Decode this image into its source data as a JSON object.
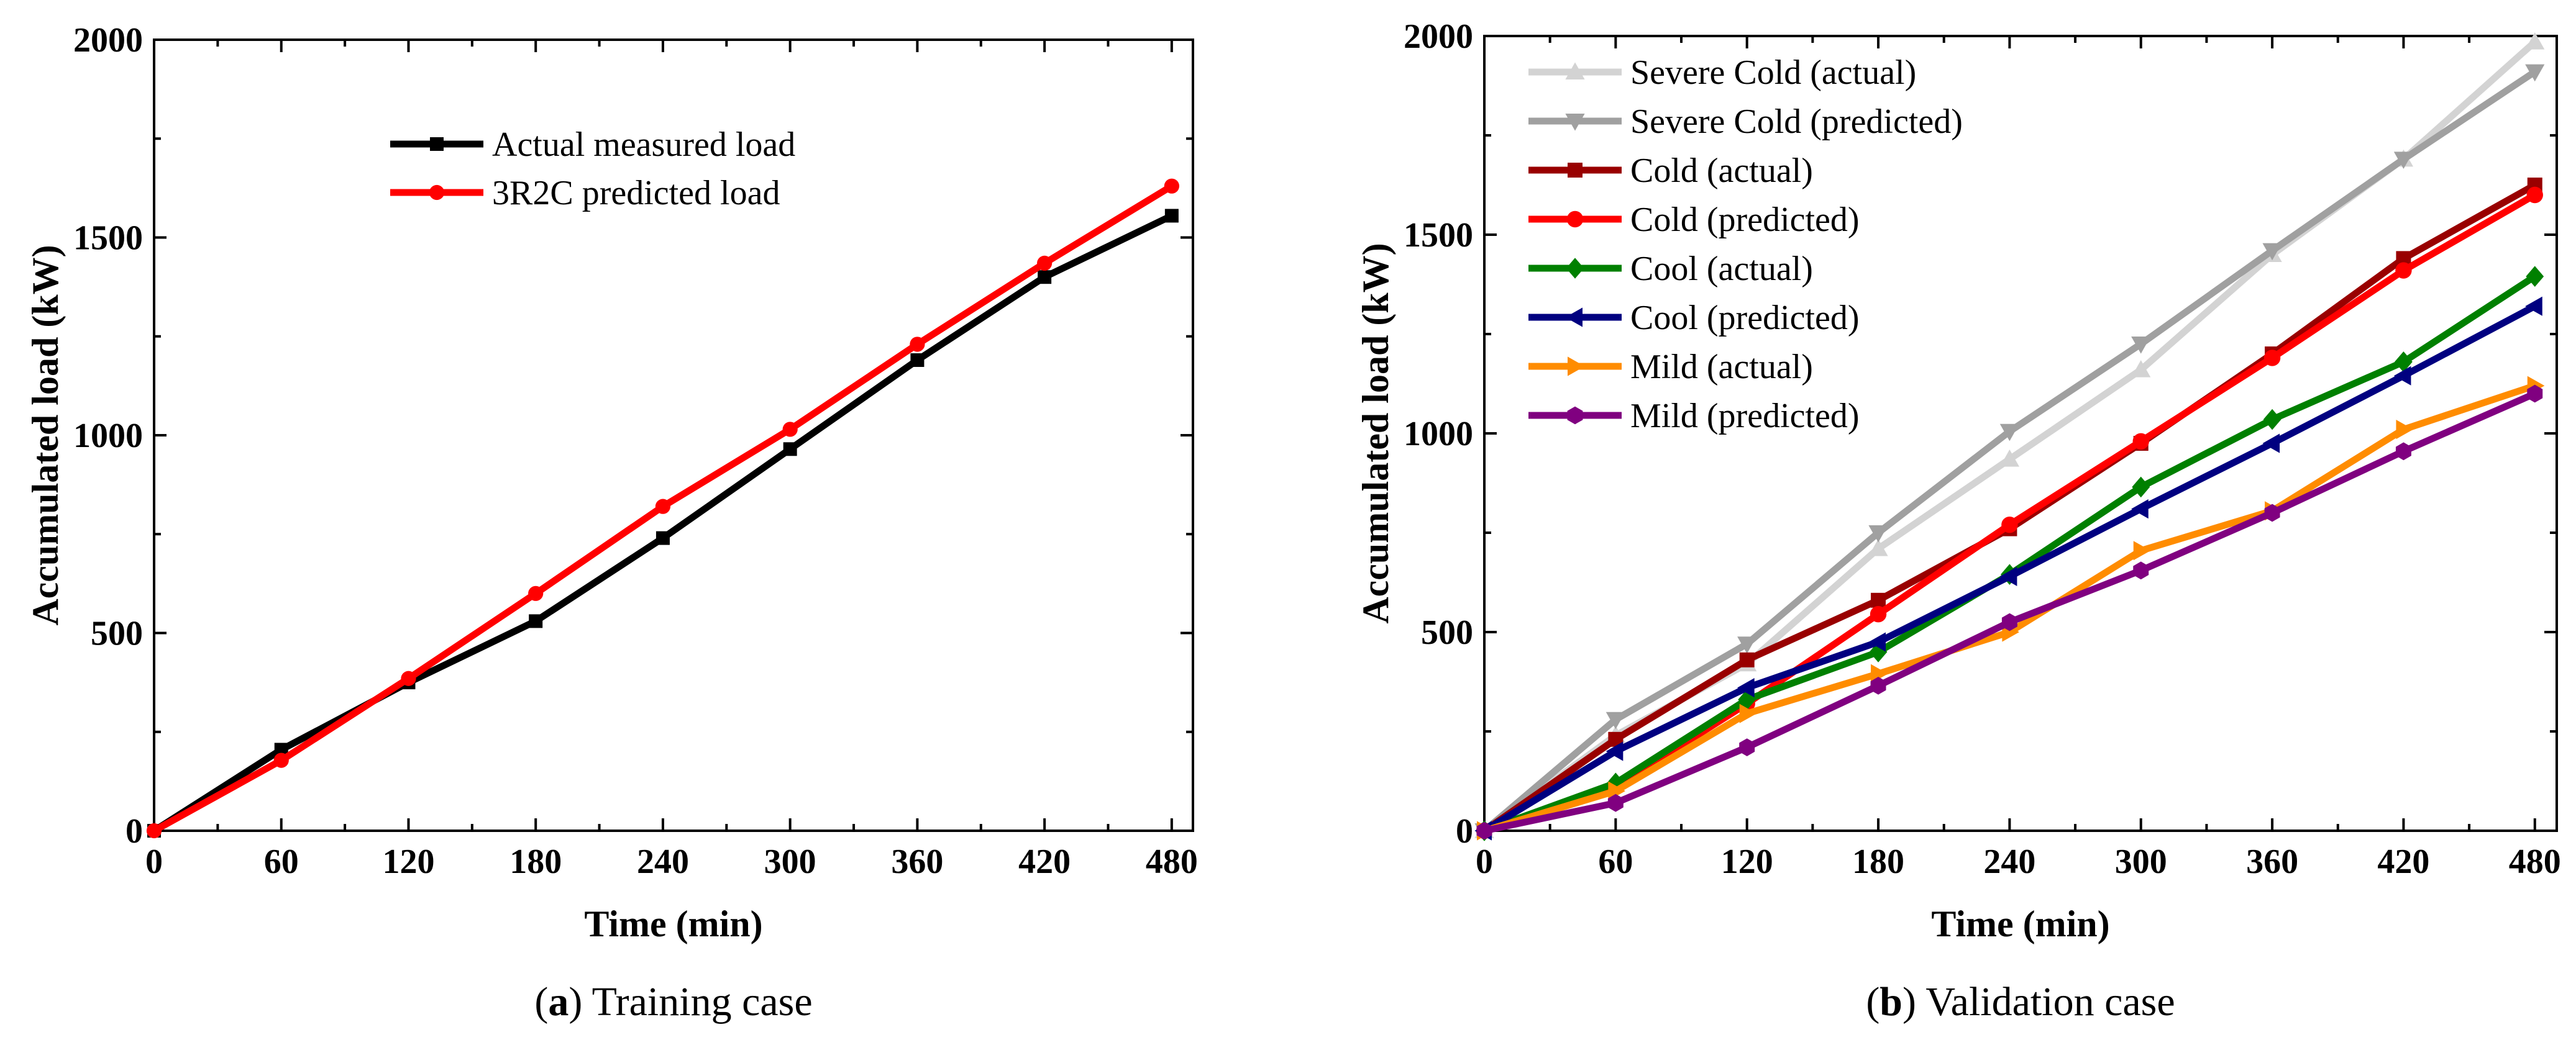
{
  "chart_data": [
    {
      "type": "line",
      "xlabel": "Time (min)",
      "ylabel": "Accumulated load (kW)",
      "xlim": [
        0,
        490
      ],
      "ylim": [
        0,
        2000
      ],
      "xticks": [
        0,
        60,
        120,
        180,
        240,
        300,
        360,
        420,
        480
      ],
      "yticks": [
        0,
        500,
        1000,
        1500,
        2000
      ],
      "grid": false,
      "legend_position": "top-center",
      "caption": {
        "letter": "a",
        "text": "Training case"
      },
      "series": [
        {
          "name": "Actual measured load",
          "color": "#000000",
          "marker": "square",
          "x": [
            0,
            60,
            120,
            180,
            240,
            300,
            360,
            420,
            480
          ],
          "y": [
            0,
            205,
            375,
            530,
            740,
            965,
            1190,
            1400,
            1555
          ]
        },
        {
          "name": "3R2C predicted load",
          "color": "#ff0000",
          "marker": "circle",
          "x": [
            0,
            60,
            120,
            180,
            240,
            300,
            360,
            420,
            480
          ],
          "y": [
            0,
            178,
            385,
            600,
            820,
            1015,
            1230,
            1435,
            1630
          ]
        }
      ]
    },
    {
      "type": "line",
      "xlabel": "Time (min)",
      "ylabel": "Accumulated load (kW)",
      "xlim": [
        0,
        490
      ],
      "ylim": [
        0,
        2000
      ],
      "xticks": [
        0,
        60,
        120,
        180,
        240,
        300,
        360,
        420,
        480
      ],
      "yticks": [
        0,
        500,
        1000,
        1500,
        2000
      ],
      "grid": false,
      "legend_position": "top-left",
      "caption": {
        "letter": "b",
        "text": "Validation case"
      },
      "series": [
        {
          "name": "Severe Cold (actual)",
          "color": "#d3d3d3",
          "marker": "triangle-up",
          "x": [
            0,
            60,
            120,
            180,
            240,
            300,
            360,
            420,
            480
          ],
          "y": [
            0,
            240,
            420,
            710,
            935,
            1160,
            1450,
            1690,
            1985
          ]
        },
        {
          "name": "Severe Cold (predicted)",
          "color": "#a0a0a0",
          "marker": "triangle-down",
          "x": [
            0,
            60,
            120,
            180,
            240,
            300,
            360,
            420,
            480
          ],
          "y": [
            0,
            280,
            470,
            750,
            1005,
            1225,
            1460,
            1690,
            1910
          ]
        },
        {
          "name": "Cold (actual)",
          "color": "#990000",
          "marker": "square",
          "x": [
            0,
            60,
            120,
            180,
            240,
            300,
            360,
            420,
            480
          ],
          "y": [
            0,
            230,
            430,
            580,
            760,
            975,
            1200,
            1440,
            1625
          ]
        },
        {
          "name": "Cold (predicted)",
          "color": "#ff0000",
          "marker": "circle",
          "x": [
            0,
            60,
            120,
            180,
            240,
            300,
            360,
            420,
            480
          ],
          "y": [
            0,
            110,
            320,
            545,
            770,
            980,
            1190,
            1410,
            1600
          ]
        },
        {
          "name": "Cool (actual)",
          "color": "#008000",
          "marker": "diamond",
          "x": [
            0,
            60,
            120,
            180,
            240,
            300,
            360,
            420,
            480
          ],
          "y": [
            0,
            120,
            330,
            450,
            645,
            865,
            1035,
            1180,
            1395
          ]
        },
        {
          "name": "Cool (predicted)",
          "color": "#000080",
          "marker": "triangle-left",
          "x": [
            0,
            60,
            120,
            180,
            240,
            300,
            360,
            420,
            480
          ],
          "y": [
            0,
            200,
            360,
            475,
            640,
            810,
            975,
            1145,
            1320
          ]
        },
        {
          "name": "Mild  (actual)",
          "color": "#ff8c00",
          "marker": "triangle-right",
          "x": [
            0,
            60,
            120,
            180,
            240,
            300,
            360,
            420,
            480
          ],
          "y": [
            0,
            100,
            295,
            395,
            500,
            705,
            805,
            1010,
            1120
          ]
        },
        {
          "name": "Mild (predicted)",
          "color": "#800080",
          "marker": "hexagon",
          "x": [
            0,
            60,
            120,
            180,
            240,
            300,
            360,
            420,
            480
          ],
          "y": [
            0,
            70,
            210,
            365,
            525,
            655,
            800,
            955,
            1100
          ]
        }
      ]
    }
  ]
}
